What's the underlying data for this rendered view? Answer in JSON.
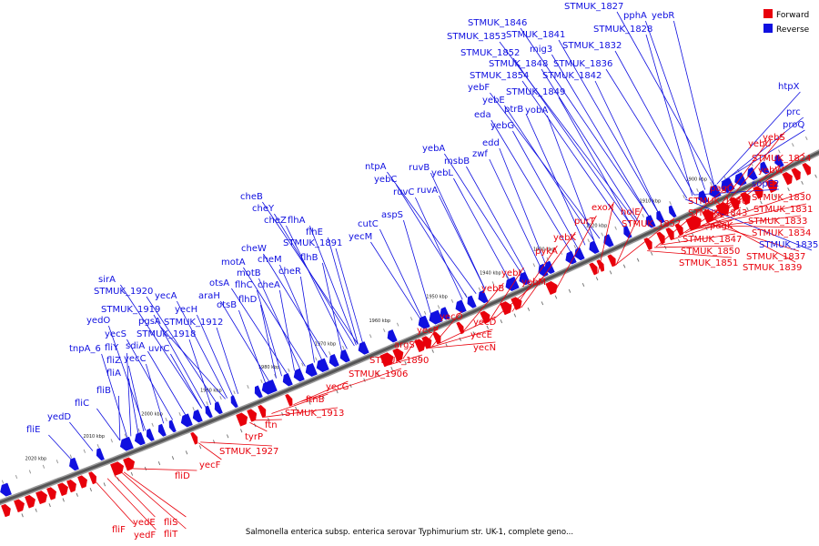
{
  "colors": {
    "forward": "#e8000b",
    "reverse": "#1010e0",
    "backbone": "#555555"
  },
  "legend": {
    "forward_label": "Forward",
    "reverse_label": "Reverse"
  },
  "caption": "Salmonella enterica subsp. enterica serovar Typhimurium str. UK-1, complete geno...",
  "kbp_labels": [
    "1900 kbp",
    "1910 kbp",
    "1920 kbp",
    "1930 kbp",
    "1940 kbp",
    "1950 kbp",
    "1960 kbp",
    "1970 kbp",
    "1980 kbp",
    "1990 kbp",
    "2000 kbp",
    "2010 kbp",
    "2020 kbp"
  ],
  "reverse_genes": [
    "STMUK_1827",
    "pphA",
    "yebR",
    "STMUK_1828",
    "STMUK_1846",
    "STMUK_1841",
    "STMUK_1853",
    "mig3",
    "STMUK_1832",
    "STMUK_1852",
    "STMUK_1848",
    "STMUK_1836",
    "STMUK_1854",
    "STMUK_1842",
    "yebF",
    "STMUK_1849",
    "yebE",
    "ptrB",
    "yobA",
    "eda",
    "yebG",
    "edd",
    "zwf",
    "yebA",
    "msbB",
    "ruvB",
    "yebL",
    "ntpA",
    "yebC",
    "ruvC",
    "ruvA",
    "cutC",
    "aspS",
    "yecM",
    "cheB",
    "cheY",
    "cheZ",
    "flhA",
    "flhE",
    "STMUK_1891",
    "flhB",
    "cheW",
    "cheM",
    "cheR",
    "motA",
    "motB",
    "cheA",
    "otsA",
    "flhC",
    "araH",
    "flhD",
    "otsB",
    "sirA",
    "STMUK_1920",
    "yecA",
    "STMUK_1919",
    "yecH",
    "pgsA",
    "STMUK_1912",
    "yedO",
    "yecS",
    "STMUK_1918",
    "sdiA",
    "uvrC",
    "tnpA_6",
    "fliY",
    "fliZ",
    "yecC",
    "fliA",
    "fliB",
    "fliC",
    "yedD",
    "fliE",
    "htpX",
    "prc",
    "proQ",
    "sopE2",
    "STMUK_1835"
  ],
  "forward_genes": [
    "yebU",
    "yebS",
    "STMUK_1824",
    "yebW",
    "pagO",
    "STMUK_1830",
    "STMUK_1840",
    "STMUK_1831",
    "STMUK_1843",
    "STMUK_1833",
    "pagK",
    "STMUK_1834",
    "STMUK_1847",
    "STMUK_1837",
    "STMUK_1850",
    "STMUK_1839",
    "STMUK_1851",
    "holE",
    "STMUK_1857",
    "exoX",
    "purT",
    "yebK",
    "pykA",
    "yebI",
    "yebM",
    "yebB",
    "yecD",
    "yecO",
    "yecE",
    "yecP",
    "yecN",
    "argS",
    "STMUK_1890",
    "STMUK_1906",
    "yecG",
    "ftnB",
    "STMUK_1913",
    "ftn",
    "tyrP",
    "STMUK_1927",
    "yecF",
    "fliD",
    "fliS",
    "yedE",
    "fliT",
    "fliF",
    "yedF"
  ]
}
